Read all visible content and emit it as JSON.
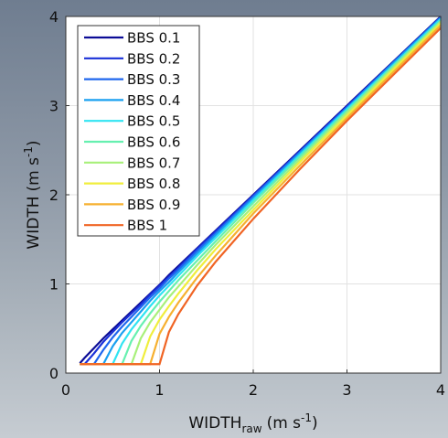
{
  "chart_data": {
    "type": "line",
    "x_label": {
      "base": "WIDTH",
      "sub": "raw",
      "unit": "(m s",
      "sup": "-1",
      "close": ")"
    },
    "y_label": {
      "base": "WIDTH",
      "unit": "(m s",
      "sup": "-1",
      "close": ")"
    },
    "x": [
      0.15,
      0.2,
      0.3,
      0.4,
      0.5,
      0.6,
      0.7,
      0.8,
      0.9,
      1.0,
      1.1,
      1.2,
      1.4,
      1.6,
      2,
      2.5,
      3,
      3.5,
      4
    ],
    "series": [
      {
        "name": "BBS 0.1",
        "color": "#0c0c96",
        "values": [
          0.11,
          0.17,
          0.28,
          0.39,
          0.49,
          0.59,
          0.69,
          0.79,
          0.89,
          0.99,
          1.1,
          1.2,
          1.4,
          1.6,
          2.0,
          2.5,
          3.0,
          3.5,
          4.0
        ]
      },
      {
        "name": "BBS 0.2",
        "color": "#1a30d8",
        "values": [
          0.1,
          0.1,
          0.22,
          0.35,
          0.46,
          0.57,
          0.67,
          0.77,
          0.88,
          0.98,
          1.08,
          1.18,
          1.39,
          1.59,
          1.99,
          2.49,
          2.99,
          3.49,
          3.99
        ]
      },
      {
        "name": "BBS 0.3",
        "color": "#1f66ee",
        "values": [
          0.1,
          0.1,
          0.1,
          0.26,
          0.4,
          0.52,
          0.63,
          0.74,
          0.85,
          0.95,
          1.06,
          1.16,
          1.37,
          1.57,
          1.98,
          2.48,
          2.98,
          3.49,
          3.99
        ]
      },
      {
        "name": "BBS 0.4",
        "color": "#1aa0f0",
        "values": [
          0.1,
          0.1,
          0.1,
          0.1,
          0.3,
          0.45,
          0.57,
          0.69,
          0.81,
          0.92,
          1.02,
          1.13,
          1.34,
          1.55,
          1.96,
          2.47,
          2.97,
          3.48,
          3.98
        ]
      },
      {
        "name": "BBS 0.5",
        "color": "#30e4f2",
        "values": [
          0.1,
          0.1,
          0.1,
          0.1,
          0.1,
          0.33,
          0.49,
          0.62,
          0.75,
          0.87,
          0.98,
          1.09,
          1.31,
          1.52,
          1.94,
          2.45,
          2.96,
          3.46,
          3.97
        ]
      },
      {
        "name": "BBS 0.6",
        "color": "#66f0b0",
        "values": [
          0.1,
          0.1,
          0.1,
          0.1,
          0.1,
          0.1,
          0.36,
          0.53,
          0.67,
          0.8,
          0.92,
          1.04,
          1.26,
          1.48,
          1.91,
          2.43,
          2.94,
          3.45,
          3.95
        ]
      },
      {
        "name": "BBS 0.7",
        "color": "#a8f07a",
        "values": [
          0.1,
          0.1,
          0.1,
          0.1,
          0.1,
          0.1,
          0.1,
          0.39,
          0.57,
          0.71,
          0.85,
          0.97,
          1.21,
          1.44,
          1.87,
          2.4,
          2.92,
          3.43,
          3.94
        ]
      },
      {
        "name": "BBS 0.8",
        "color": "#f0ee3c",
        "values": [
          0.1,
          0.1,
          0.1,
          0.1,
          0.1,
          0.1,
          0.1,
          0.1,
          0.41,
          0.6,
          0.75,
          0.89,
          1.15,
          1.39,
          1.83,
          2.37,
          2.89,
          3.41,
          3.92
        ]
      },
      {
        "name": "BBS 0.9",
        "color": "#f6b030",
        "values": [
          0.1,
          0.1,
          0.1,
          0.1,
          0.1,
          0.1,
          0.1,
          0.1,
          0.1,
          0.44,
          0.63,
          0.79,
          1.07,
          1.32,
          1.79,
          2.33,
          2.86,
          3.38,
          3.9
        ]
      },
      {
        "name": "BBS 1",
        "color": "#f06424",
        "values": [
          0.1,
          0.1,
          0.1,
          0.1,
          0.1,
          0.1,
          0.1,
          0.1,
          0.1,
          0.1,
          0.46,
          0.66,
          0.98,
          1.25,
          1.73,
          2.29,
          2.83,
          3.35,
          3.87
        ]
      }
    ],
    "xlim": [
      0,
      4
    ],
    "ylim": [
      0,
      4
    ],
    "xticks": [
      0,
      1,
      2,
      3,
      4
    ],
    "yticks": [
      0,
      1,
      2,
      3,
      4
    ],
    "grid": true,
    "legend": "upper left"
  }
}
